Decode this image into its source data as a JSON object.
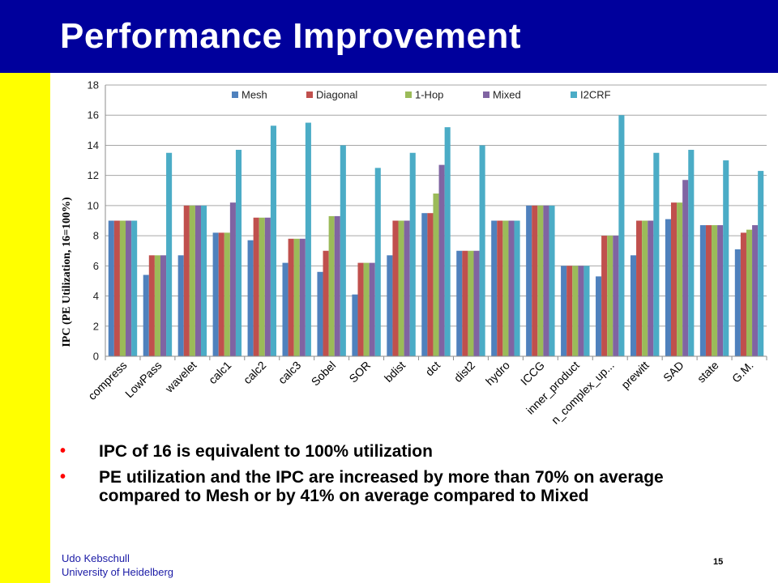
{
  "slide": {
    "title": "Performance Improvement",
    "bullets": [
      "IPC of 16 is equivalent to 100% utilization",
      "PE utilization and the IPC are increased by more than 70% on average compared to Mesh or by 41% on average compared to Mixed"
    ],
    "footer": {
      "author": "Udo Kebschull",
      "affiliation": "University of Heidelberg",
      "page_number": "15"
    },
    "colors": {
      "header": "#00009c",
      "left_strip": "#ffff00",
      "bullet": "#ff0000"
    }
  },
  "chart_data": {
    "type": "bar",
    "title": "",
    "xlabel": "",
    "ylabel": "IPC (PE Utilization, 16=100%)",
    "ylim": [
      0,
      18
    ],
    "yticks": [
      "0",
      "2",
      "4",
      "6",
      "8",
      "10",
      "12",
      "14",
      "16",
      "18"
    ],
    "grid": true,
    "legend_position": "top",
    "categories": [
      "compress",
      "LowPass",
      "wavelet",
      "calc1",
      "calc2",
      "calc3",
      "Sobel",
      "SOR",
      "bdist",
      "dct",
      "dist2",
      "hydro",
      "ICCG",
      "inner_product",
      "n_complex_up...",
      "prewitt",
      "SAD",
      "state",
      "G.M."
    ],
    "series": [
      {
        "name": "Mesh",
        "color": "#4f81bd",
        "values": [
          9.0,
          5.4,
          6.7,
          8.2,
          7.7,
          6.2,
          5.6,
          4.1,
          6.7,
          9.5,
          7.0,
          9.0,
          10.0,
          6.0,
          5.3,
          6.7,
          9.1,
          8.7,
          7.1
        ]
      },
      {
        "name": "Diagonal",
        "color": "#c0504d",
        "values": [
          9.0,
          6.7,
          10.0,
          8.2,
          9.2,
          7.8,
          7.0,
          6.2,
          9.0,
          9.5,
          7.0,
          9.0,
          10.0,
          6.0,
          8.0,
          9.0,
          10.2,
          8.7,
          8.2
        ]
      },
      {
        "name": "1-Hop",
        "color": "#9bbb59",
        "values": [
          9.0,
          6.7,
          10.0,
          8.2,
          9.2,
          7.8,
          9.3,
          6.2,
          9.0,
          10.8,
          7.0,
          9.0,
          10.0,
          6.0,
          8.0,
          9.0,
          10.2,
          8.7,
          8.4
        ]
      },
      {
        "name": "Mixed",
        "color": "#8064a2",
        "values": [
          9.0,
          6.7,
          10.0,
          10.2,
          9.2,
          7.8,
          9.3,
          6.2,
          9.0,
          12.7,
          7.0,
          9.0,
          10.0,
          6.0,
          8.0,
          9.0,
          11.7,
          8.7,
          8.7
        ]
      },
      {
        "name": "I2CRF",
        "color": "#4bacc6",
        "values": [
          9.0,
          13.5,
          10.0,
          13.7,
          15.3,
          15.5,
          14.0,
          12.5,
          13.5,
          15.2,
          14.0,
          9.0,
          10.0,
          6.0,
          16.0,
          13.5,
          13.7,
          13.0,
          12.3
        ]
      }
    ]
  }
}
